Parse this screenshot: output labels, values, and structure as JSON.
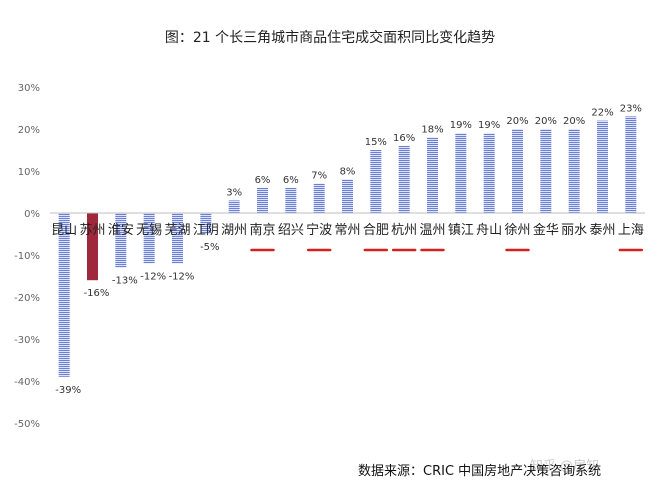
{
  "chart_data": {
    "type": "bar",
    "title": "图：21 个长三角城市商品住宅成交面积同比变化趋势",
    "categories": [
      "昆山",
      "苏州",
      "淮安",
      "无锡",
      "芜湖",
      "江阴",
      "湖州",
      "南京",
      "绍兴",
      "宁波",
      "常州",
      "合肥",
      "杭州",
      "温州",
      "镇江",
      "舟山",
      "徐州",
      "金华",
      "丽水",
      "泰州",
      "上海"
    ],
    "values": [
      -39,
      -16,
      -13,
      -12,
      -12,
      -5,
      3,
      6,
      6,
      7,
      8,
      15,
      16,
      18,
      19,
      19,
      20,
      20,
      20,
      22,
      23
    ],
    "value_labels": [
      "-39%",
      "-16%",
      "-13%",
      "-12%",
      "-12%",
      "-5%",
      "3%",
      "6%",
      "6%",
      "7%",
      "8%",
      "15%",
      "16%",
      "18%",
      "19%",
      "19%",
      "20%",
      "20%",
      "20%",
      "22%",
      "23%"
    ],
    "y_ticks": [
      "30%",
      "20%",
      "10%",
      "0%",
      "-10%",
      "-20%",
      "-30%",
      "-40%",
      "-50%"
    ],
    "y_tick_values": [
      30,
      20,
      10,
      0,
      -10,
      -20,
      -30,
      -40,
      -50
    ],
    "ylim": [
      -50,
      30
    ],
    "highlight_category": "苏州",
    "underlined_categories": [
      "南京",
      "宁波",
      "合肥",
      "杭州",
      "温州",
      "徐州",
      "上海"
    ],
    "grid": false,
    "colors": {
      "bar": "#6a7fd6",
      "bar_stripe": "#dfe4f8",
      "highlight": "#a0283c",
      "underline": "#d42020",
      "axis": "#bfbfbf"
    },
    "source": "数据来源：CRIC 中国房地产决策咨询系统",
    "watermark": "知乎 @房知"
  }
}
